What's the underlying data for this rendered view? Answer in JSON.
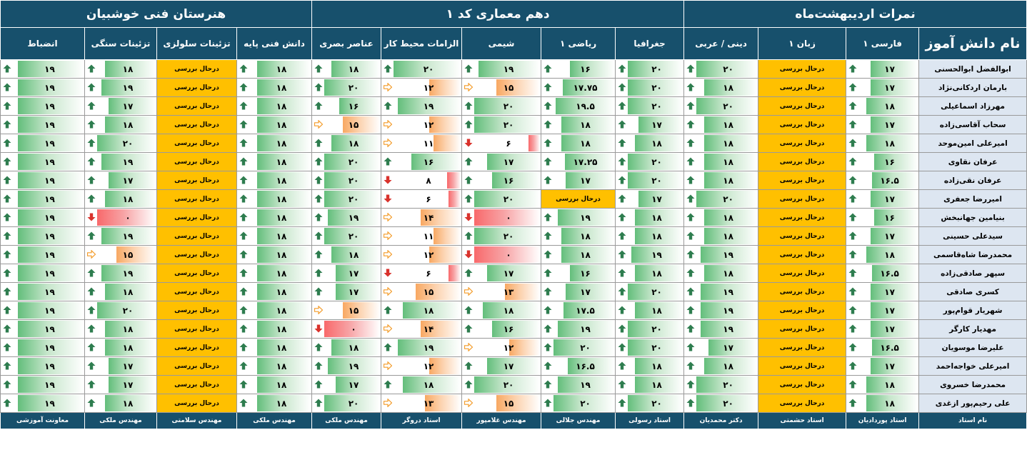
{
  "titles": {
    "school": "هنرستان فنی خوشبیان",
    "class": "دهم معماری کد ۱",
    "report": "نمرات اردیبهشت‌ماه"
  },
  "headers": [
    "انضباط",
    "تزئینات سنگی",
    "تزئینات سلولزی",
    "دانش فنی پایه",
    "عناصر بصری",
    "الزامات محیط کار",
    "شیمی",
    "ریاضی ۱",
    "جغرافیا",
    "دینی / عربی",
    "زبان ۱",
    "فارسی ۱",
    "نام دانش آموز"
  ],
  "teachers": [
    "معاونت آموزشی",
    "مهندس ملکی",
    "مهندس سلامتی",
    "مهندس ملکی",
    "مهندس ملکی",
    "استاد دروگر",
    "مهندس غلامپور",
    "مهندس جلالی",
    "استاد رسولی",
    "دکتر محمدیان",
    "استاد حشمتی",
    "استاد پوردادیان",
    "نام استاد"
  ],
  "icon_names": {
    "up": "arrow-up-icon",
    "right": "arrow-right-icon",
    "down": "arrow-down-icon"
  },
  "colors": {
    "header": "#17506c",
    "name_cell": "#dde6f1",
    "pending": "#ffc000",
    "bar_green": "#63be7b",
    "bar_orange": "#f8a862",
    "bar_red": "#f8696b",
    "icon_up": "#2e7d4f",
    "icon_right": "#f39c2a",
    "icon_down": "#d9322c"
  },
  "rows": [
    [
      "۱۹",
      "۱۸",
      "درحال بررسی",
      "۱۸",
      "۱۸",
      "۲۰",
      "۱۹",
      "۱۶",
      "۲۰",
      "۲۰",
      "درحال بررسی",
      "۱۷",
      "ابوالفضل ابوالحسنی"
    ],
    [
      "۱۹",
      "۱۹",
      "درحال بررسی",
      "۱۸",
      "۲۰",
      "۱۲",
      "۱۵",
      "۱۷.۷۵",
      "۲۰",
      "۱۸",
      "درحال بررسی",
      "۱۷",
      "بارمان اردکانی‌نژاد"
    ],
    [
      "۱۹",
      "۱۷",
      "درحال بررسی",
      "۱۸",
      "۱۶",
      "۱۹",
      "۲۰",
      "۱۹.۵",
      "۲۰",
      "۲۰",
      "درحال بررسی",
      "۱۸",
      "مهرزاد اسماعیلی"
    ],
    [
      "۱۹",
      "۱۸",
      "درحال بررسی",
      "۱۸",
      "۱۵",
      "۱۲",
      "۲۰",
      "۱۸",
      "۱۷",
      "۱۸",
      "درحال بررسی",
      "۱۷",
      "سحاب آقاسی‌زاده"
    ],
    [
      "۱۹",
      "۲۰",
      "درحال بررسی",
      "۱۸",
      "۱۸",
      "۱۱",
      "۶",
      "۱۸",
      "۱۸",
      "۱۸",
      "درحال بررسی",
      "۱۸",
      "امیرعلی امین‌موحد"
    ],
    [
      "۱۹",
      "۱۹",
      "درحال بررسی",
      "۱۸",
      "۲۰",
      "۱۶",
      "۱۷",
      "۱۷.۲۵",
      "۲۰",
      "۱۸",
      "درحال بررسی",
      "۱۶",
      "عرفان نقاوی"
    ],
    [
      "۱۹",
      "۱۷",
      "درحال بررسی",
      "۱۸",
      "۲۰",
      "۸",
      "۱۶",
      "۱۷",
      "۲۰",
      "۱۸",
      "درحال بررسی",
      "۱۶.۵",
      "عرفان نقی‌زاده"
    ],
    [
      "۱۹",
      "۱۸",
      "درحال بررسی",
      "۱۸",
      "۲۰",
      "۶",
      "۲۰",
      "درحال بررسی",
      "۱۷",
      "۲۰",
      "درحال بررسی",
      "۱۷",
      "امیررضا جعفری"
    ],
    [
      "۱۹",
      "۰",
      "درحال بررسی",
      "۱۸",
      "۱۹",
      "۱۴",
      "۰",
      "۱۹",
      "۱۸",
      "۱۸",
      "درحال بررسی",
      "۱۶",
      "بنیامین جهانبخش"
    ],
    [
      "۱۹",
      "۱۹",
      "درحال بررسی",
      "۱۸",
      "۲۰",
      "۱۱",
      "۲۰",
      "۱۸",
      "۱۸",
      "۱۸",
      "درحال بررسی",
      "۱۷",
      "سیدعلی حسینی"
    ],
    [
      "۱۹",
      "۱۵",
      "درحال بررسی",
      "۱۸",
      "۱۸",
      "۱۲",
      "۰",
      "۱۸",
      "۱۹",
      "۱۹",
      "درحال بررسی",
      "۱۸",
      "محمدرضا شاه‌قاسمی"
    ],
    [
      "۱۹",
      "۱۹",
      "درحال بررسی",
      "۱۸",
      "۱۷",
      "۶",
      "۱۷",
      "۱۶",
      "۱۸",
      "۱۸",
      "درحال بررسی",
      "۱۶.۵",
      "سپهر صادقی‌زاده"
    ],
    [
      "۱۹",
      "۱۸",
      "درحال بررسی",
      "۱۸",
      "۱۷",
      "۱۵",
      "۱۳",
      "۱۷",
      "۲۰",
      "۱۹",
      "درحال بررسی",
      "۱۷",
      "کسری صادقی"
    ],
    [
      "۱۹",
      "۲۰",
      "درحال بررسی",
      "۱۸",
      "۱۵",
      "۱۸",
      "۱۸",
      "۱۷.۵",
      "۱۸",
      "۱۹",
      "درحال بررسی",
      "۱۷",
      "شهریار قوام‌پور"
    ],
    [
      "۱۹",
      "۱۸",
      "درحال بررسی",
      "۱۸",
      "۰",
      "۱۴",
      "۱۶",
      "۱۹",
      "۲۰",
      "۱۹",
      "درحال بررسی",
      "۱۷",
      "مهدیار کارگر"
    ],
    [
      "۱۹",
      "۱۸",
      "درحال بررسی",
      "۱۸",
      "۱۸",
      "۱۹",
      "۱۲",
      "۲۰",
      "۲۰",
      "۱۷",
      "درحال بررسی",
      "۱۶.۵",
      "علیرضا موسویان"
    ],
    [
      "۱۹",
      "۱۷",
      "درحال بررسی",
      "۱۸",
      "۱۹",
      "۱۲",
      "۱۷",
      "۱۶.۵",
      "۱۸",
      "۱۸",
      "درحال بررسی",
      "۱۷",
      "امیرعلی خواجه‌احمد"
    ],
    [
      "۱۹",
      "۱۷",
      "درحال بررسی",
      "۱۸",
      "۱۷",
      "۱۸",
      "۲۰",
      "۱۹",
      "۱۸",
      "۲۰",
      "درحال بررسی",
      "۱۸",
      "محمدرضا خسروی"
    ],
    [
      "۱۹",
      "۱۸",
      "درحال بررسی",
      "۱۸",
      "۲۰",
      "۱۳",
      "۱۵",
      "۲۰",
      "۲۰",
      "۲۰",
      "درحال بررسی",
      "۱۸",
      "علی رحیم‌پور ازغدی"
    ]
  ]
}
